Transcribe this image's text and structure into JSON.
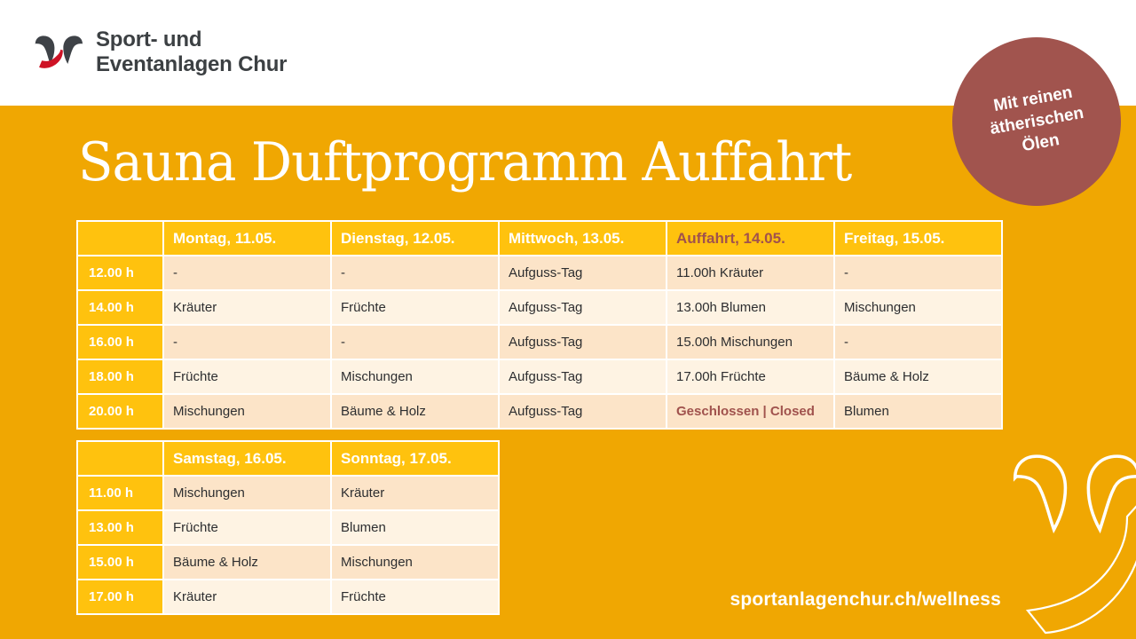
{
  "page": {
    "background_color": "#F0A702",
    "band_color": "#FFFFFF",
    "url_label": "sportanlagenchur.ch/wellness"
  },
  "logo": {
    "line1": "Sport- und",
    "line2": "Eventanlagen Chur",
    "mark_dark_color": "#3E4247",
    "mark_red_color": "#CE1225"
  },
  "badge": {
    "line1": "Mit reinen",
    "line2": "ätherischen",
    "line3": "Ölen",
    "color": "#A1544E"
  },
  "title": "Sauna Duftprogramm Auffahrt",
  "palette": {
    "header_yellow": "#FFC20E",
    "row_dark_cream": "#FCE4C8",
    "row_light_cream": "#FEF3E3",
    "accent_red": "#A0524D",
    "cell_text": "#2D2E30"
  },
  "table1": {
    "columns": [
      "",
      "Montag, 11.05.",
      "Dienstag, 12.05.",
      "Mittwoch, 13.05.",
      "Auffahrt, 14.05.",
      "Freitag, 15.05."
    ],
    "accent_header_index": 4,
    "accent_cells": [
      [
        4,
        3
      ]
    ],
    "rows": [
      {
        "time": "12.00 h",
        "cells": [
          "-",
          "-",
          "Aufguss-Tag",
          "11.00h Kräuter",
          "-"
        ]
      },
      {
        "time": "14.00 h",
        "cells": [
          "Kräuter",
          "Früchte",
          "Aufguss-Tag",
          "13.00h Blumen",
          "Mischungen"
        ]
      },
      {
        "time": "16.00 h",
        "cells": [
          "-",
          "-",
          "Aufguss-Tag",
          "15.00h Mischungen",
          "-"
        ]
      },
      {
        "time": "18.00 h",
        "cells": [
          "Früchte",
          "Mischungen",
          "Aufguss-Tag",
          "17.00h Früchte",
          "Bäume & Holz"
        ]
      },
      {
        "time": "20.00 h",
        "cells": [
          "Mischungen",
          "Bäume & Holz",
          "Aufguss-Tag",
          "Geschlossen | Closed",
          "Blumen"
        ]
      }
    ]
  },
  "table2": {
    "columns": [
      "",
      "Samstag, 16.05.",
      "Sonntag, 17.05."
    ],
    "accent_header_index": -1,
    "accent_cells": [],
    "rows": [
      {
        "time": "11.00 h",
        "cells": [
          "Mischungen",
          "Kräuter"
        ]
      },
      {
        "time": "13.00 h",
        "cells": [
          "Früchte",
          "Blumen"
        ]
      },
      {
        "time": "15.00 h",
        "cells": [
          "Bäume & Holz",
          "Mischungen"
        ]
      },
      {
        "time": "17.00 h",
        "cells": [
          "Kräuter",
          "Früchte"
        ]
      }
    ]
  }
}
